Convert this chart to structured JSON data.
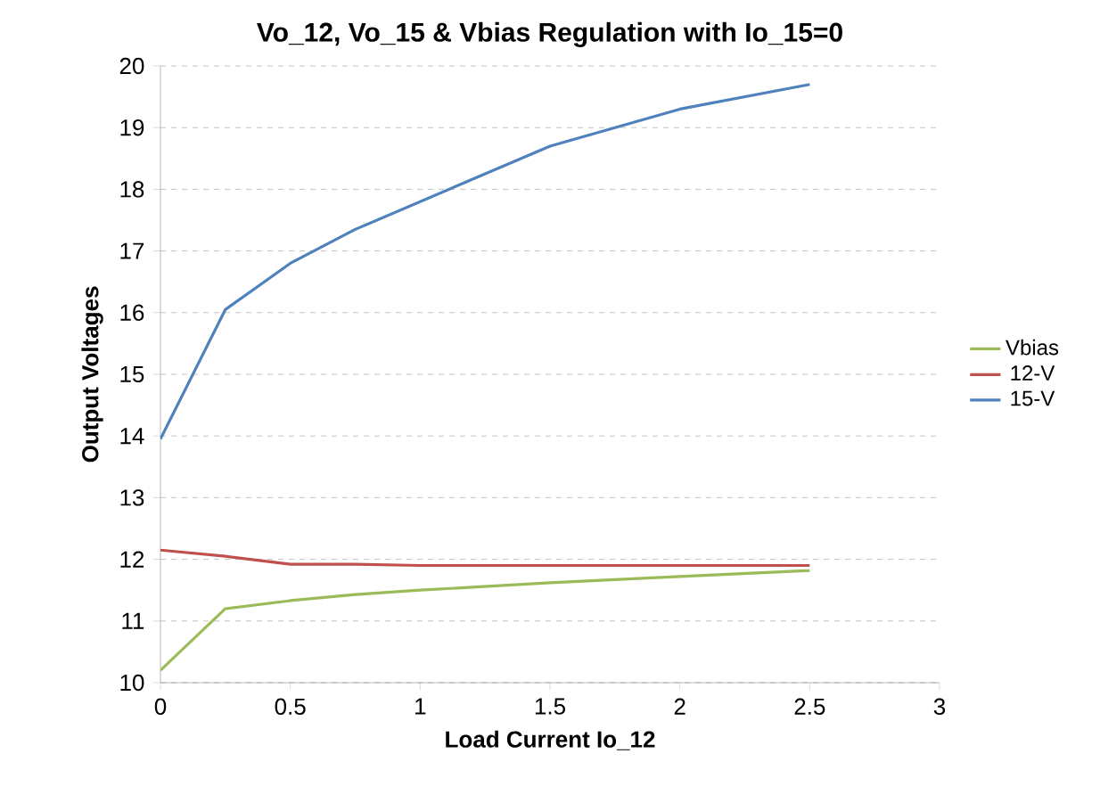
{
  "chart_data": {
    "type": "line",
    "title": "Vo_12, Vo_15 & Vbias Regulation with Io_15=0",
    "xlabel": "Load Current Io_12",
    "ylabel": "Output Voltages",
    "series": [
      {
        "name": "Vbias",
        "color": "#9bbb59",
        "x": [
          0,
          0.25,
          0.5,
          0.75,
          1,
          1.5,
          2,
          2.5
        ],
        "values": [
          10.2,
          11.2,
          11.33,
          11.43,
          11.5,
          11.62,
          11.72,
          11.82
        ]
      },
      {
        "name": "12-V",
        "color": "#c0504d",
        "x": [
          0,
          0.25,
          0.5,
          0.75,
          1,
          1.5,
          2,
          2.5
        ],
        "values": [
          12.15,
          12.05,
          11.92,
          11.92,
          11.9,
          11.9,
          11.9,
          11.9
        ]
      },
      {
        "name": "15-V",
        "color": "#4f81bd",
        "x": [
          0,
          0.25,
          0.5,
          0.75,
          1,
          1.5,
          2,
          2.5
        ],
        "values": [
          13.95,
          16.05,
          16.8,
          17.35,
          17.8,
          18.7,
          19.3,
          19.7
        ]
      }
    ],
    "xlim": [
      0,
      3
    ],
    "ylim": [
      10,
      20
    ],
    "xticks": [
      0,
      0.5,
      1,
      1.5,
      2,
      2.5,
      3
    ],
    "yticks": [
      10,
      11,
      12,
      13,
      14,
      15,
      16,
      17,
      18,
      19,
      20
    ],
    "grid": "y",
    "legend": "right",
    "line_style": "solid"
  }
}
